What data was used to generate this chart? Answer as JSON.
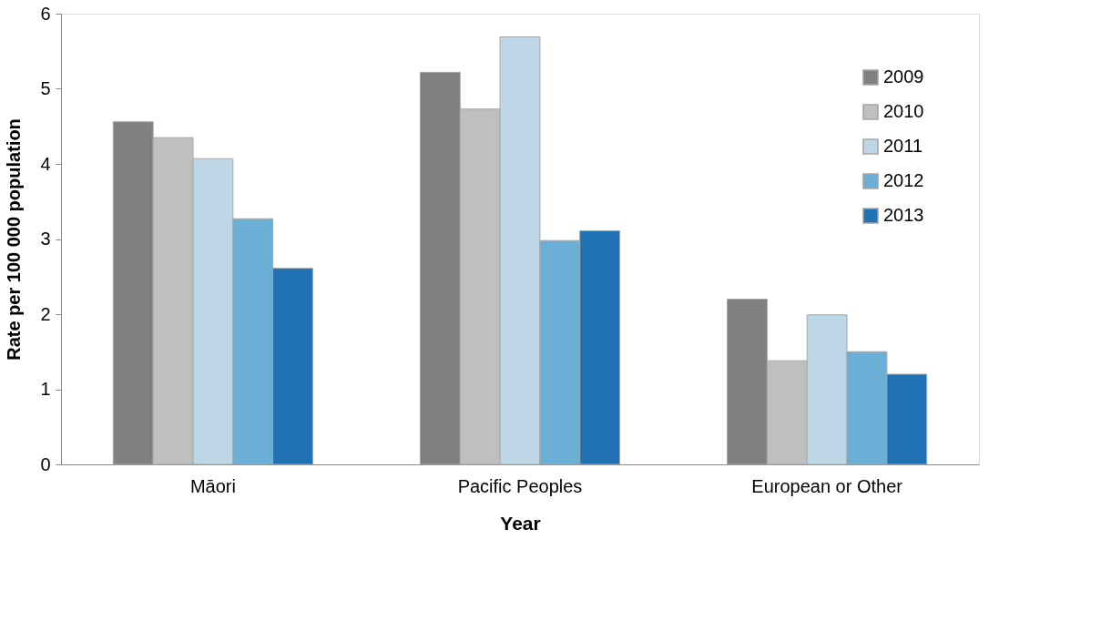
{
  "chart_data": {
    "type": "bar",
    "xlabel": "Year",
    "ylabel": "Rate per 100 000 population",
    "categories": [
      "Māori",
      "Pacific Peoples",
      "European or Other"
    ],
    "series": [
      {
        "name": "2009",
        "color": "#808080",
        "values": [
          4.56,
          5.22,
          2.2
        ]
      },
      {
        "name": "2010",
        "color": "#bfbfbf",
        "values": [
          4.35,
          4.73,
          1.38
        ]
      },
      {
        "name": "2011",
        "color": "#bed7e6",
        "values": [
          4.07,
          5.69,
          1.99
        ]
      },
      {
        "name": "2012",
        "color": "#6baed6",
        "values": [
          3.27,
          2.98,
          1.5
        ]
      },
      {
        "name": "2013",
        "color": "#2171b5",
        "values": [
          2.61,
          3.11,
          1.2
        ]
      }
    ],
    "ylim": [
      0,
      6
    ],
    "yticks": [
      0,
      1,
      2,
      3,
      4,
      5,
      6
    ],
    "grid": false,
    "legend": "top right"
  }
}
